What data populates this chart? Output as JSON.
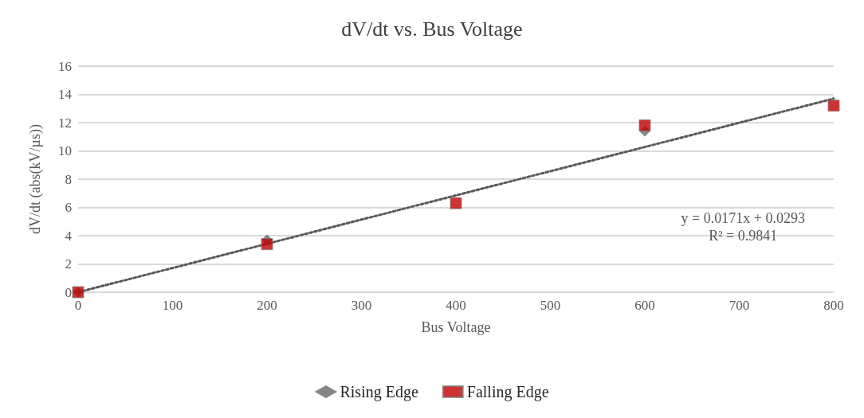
{
  "chart_data": {
    "type": "scatter",
    "title": "dV/dt vs. Bus Voltage",
    "xlabel": "Bus Voltage",
    "ylabel": "dV/dt (abs(kV/µs))",
    "x": [
      0,
      200,
      400,
      600,
      800
    ],
    "series": [
      {
        "name": "Rising Edge",
        "color": "#696969",
        "marker": "diamond",
        "values": [
          0,
          3.7,
          null,
          11.4,
          null
        ]
      },
      {
        "name": "Falling Edge",
        "color": "#c00000",
        "marker": "square",
        "values": [
          0,
          3.4,
          6.3,
          11.8,
          13.2
        ]
      },
      {
        "type": "line",
        "color": "#595959",
        "line_style": "dotted",
        "marker": "none",
        "x": [
          0,
          800
        ],
        "values": [
          0,
          13.7
        ]
      }
    ],
    "annotations": [
      "y = 0.0171x + 0.0293",
      "R² = 0.9841"
    ],
    "xlim": [
      0,
      800
    ],
    "xticks": [
      0,
      100,
      200,
      300,
      400,
      500,
      600,
      700,
      800
    ],
    "ylim": [
      0,
      16
    ],
    "yticks": [
      0,
      2,
      4,
      6,
      8,
      10,
      12,
      14,
      16
    ],
    "grid": "y",
    "legend": "bottom"
  }
}
